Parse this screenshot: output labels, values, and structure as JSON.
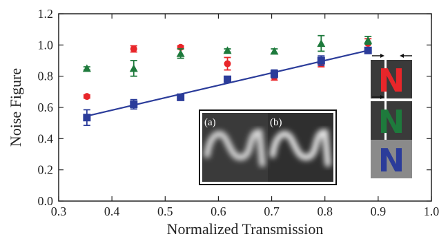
{
  "chart_data": {
    "type": "scatter",
    "title": "",
    "xlabel": "Normalized Transmission",
    "ylabel": "Noise Figure",
    "xlim": [
      0.3,
      1.0
    ],
    "ylim": [
      0.0,
      1.2
    ],
    "xticks": [
      "0.3",
      "0.4",
      "0.5",
      "0.6",
      "0.7",
      "0.8",
      "0.9",
      "1.0"
    ],
    "yticks": [
      "0.0",
      "0.2",
      "0.4",
      "0.6",
      "0.8",
      "1.0",
      "1.2"
    ],
    "grid": false,
    "legend": "none",
    "series": [
      {
        "marker": "circle",
        "color": "#e8262a",
        "x": [
          0.353,
          0.441,
          0.529,
          0.617,
          0.705,
          0.793,
          0.881
        ],
        "y": [
          0.67,
          0.975,
          0.985,
          0.88,
          0.795,
          0.88,
          1.01
        ],
        "err": [
          0.01,
          0.02,
          0.01,
          0.04,
          0.02,
          0.02,
          0.03
        ]
      },
      {
        "marker": "triangle",
        "color": "#1e7a3c",
        "x": [
          0.353,
          0.441,
          0.529,
          0.617,
          0.705,
          0.793,
          0.881
        ],
        "y": [
          0.85,
          0.85,
          0.945,
          0.965,
          0.96,
          1.01,
          1.03
        ],
        "err": [
          0.01,
          0.05,
          0.03,
          0.01,
          0.015,
          0.05,
          0.025
        ]
      },
      {
        "marker": "square",
        "color": "#2b3c9a",
        "x": [
          0.353,
          0.441,
          0.529,
          0.617,
          0.705,
          0.793,
          0.881
        ],
        "y": [
          0.535,
          0.62,
          0.665,
          0.78,
          0.815,
          0.9,
          0.965
        ],
        "err": [
          0.05,
          0.03,
          0.02,
          0.015,
          0.025,
          0.03,
          0.015
        ],
        "fit_line": {
          "x": [
            0.353,
            0.881
          ],
          "y": [
            0.545,
            0.965
          ]
        }
      }
    ],
    "inset": {
      "panels": [
        "(a)",
        "(b)"
      ]
    },
    "side_glyphs": [
      {
        "letter": "N",
        "letter_color": "#e8262a",
        "bg": "#3a3a3a",
        "arrows": true
      },
      {
        "letter": "N",
        "letter_color": "#1e7a3c",
        "bg": "#3a3a3a",
        "arrows": true
      },
      {
        "letter": "N",
        "letter_color": "#2b3c9a",
        "bg": "#8a8a8a",
        "arrows": false
      }
    ]
  }
}
